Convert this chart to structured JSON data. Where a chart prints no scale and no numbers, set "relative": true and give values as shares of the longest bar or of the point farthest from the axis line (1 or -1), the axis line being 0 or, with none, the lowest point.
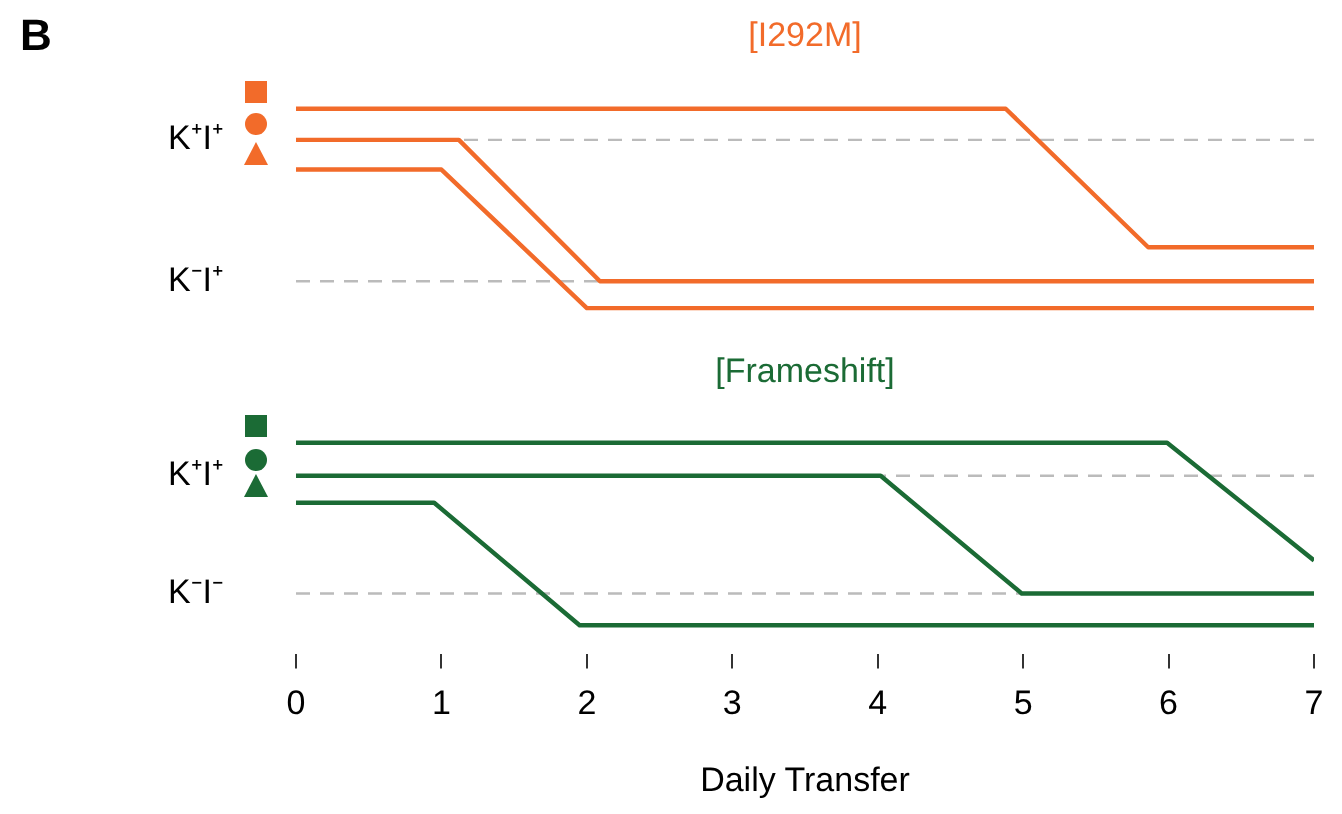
{
  "chart_data": [
    {
      "type": "line",
      "title": "[I292M]",
      "annotations": [
        "B"
      ],
      "relative": true,
      "tick_labels": false,
      "legend": false,
      "grid": false,
      "xlim": [
        0,
        7
      ],
      "ref_lines": [
        {
          "axis": "y",
          "value": 0.844,
          "label": "K⁺I⁺",
          "color": "#bbbbbb",
          "line_style": "dashed"
        },
        {
          "axis": "y",
          "value": 0.135,
          "label": "K⁻I⁺",
          "color": "#bbbbbb",
          "line_style": "dashed"
        }
      ],
      "series": [
        {
          "color": "#f26b2a",
          "x": [
            0,
            4.88,
            5.86,
            7
          ],
          "values": [
            1.0,
            1.0,
            0.305,
            0.305
          ]
        },
        {
          "color": "#f26b2a",
          "x": [
            0,
            1.12,
            2.09,
            7
          ],
          "values": [
            0.844,
            0.844,
            0.135,
            0.135
          ]
        },
        {
          "color": "#f26b2a",
          "x": [
            0,
            1.0,
            2.0,
            7
          ],
          "values": [
            0.695,
            0.695,
            0.0,
            0.0
          ]
        }
      ]
    },
    {
      "type": "line",
      "title": "[Frameshift]",
      "xlabel": "Daily Transfer",
      "relative": true,
      "tick_labels": "x",
      "legend": false,
      "grid": false,
      "xlim": [
        0,
        7
      ],
      "xticks": [
        0,
        1,
        2,
        3,
        4,
        5,
        6,
        7
      ],
      "ref_lines": [
        {
          "axis": "y",
          "value": 0.819,
          "label": "K⁺I⁺",
          "color": "#bbbbbb",
          "line_style": "dashed"
        },
        {
          "axis": "y",
          "value": 0.174,
          "label": "K⁻I⁻",
          "color": "#bbbbbb",
          "line_style": "dashed"
        }
      ],
      "series": [
        {
          "color": "#1b6b35",
          "x": [
            0,
            5.99,
            7
          ],
          "values": [
            1.0,
            1.0,
            0.355
          ]
        },
        {
          "color": "#1b6b35",
          "x": [
            0,
            4.02,
            4.99,
            7
          ],
          "values": [
            0.819,
            0.819,
            0.174,
            0.174
          ]
        },
        {
          "color": "#1b6b35",
          "x": [
            0,
            0.95,
            1.95,
            7
          ],
          "values": [
            0.671,
            0.671,
            0.0,
            0.0
          ]
        }
      ]
    }
  ]
}
